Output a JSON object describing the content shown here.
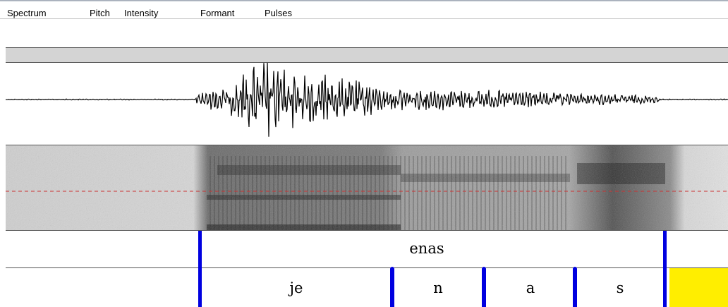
{
  "menu": {
    "items": [
      "Spectrum",
      "Pitch",
      "Intensity",
      "Formant",
      "Pulses"
    ]
  },
  "textgrid": {
    "tier1": {
      "label": "enas"
    },
    "tier2": {
      "labels": [
        "je",
        "n",
        "a",
        "s"
      ]
    }
  },
  "colors": {
    "boundary": "#0000e0",
    "selected_interval": "#ffee00",
    "pitch_line": "#cc0000",
    "waveform": "#000000"
  }
}
